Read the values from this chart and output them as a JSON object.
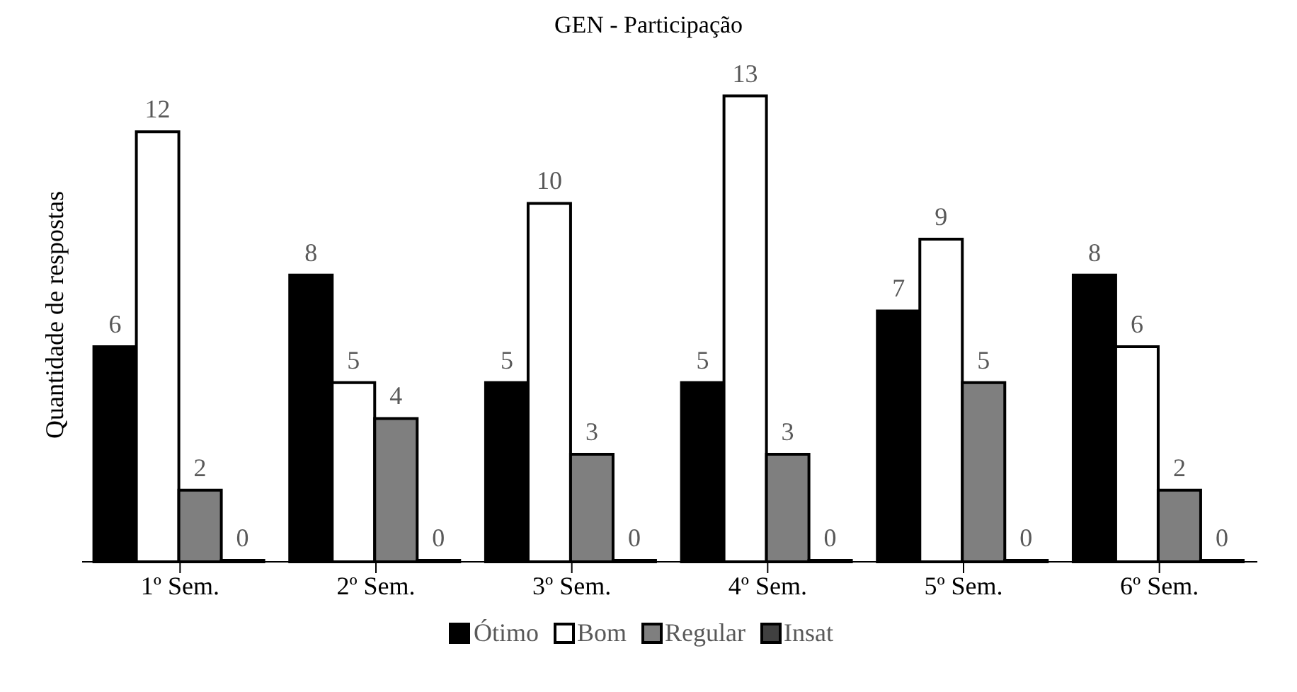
{
  "chart_data": {
    "type": "bar",
    "title": "GEN - Participação",
    "ylabel": "Quantidade de respostas",
    "categories": [
      "1º Sem.",
      "2º Sem.",
      "3º Sem.",
      "4º Sem.",
      "5º Sem.",
      "6º Sem."
    ],
    "series": [
      {
        "name": "Ótimo",
        "color": "#000000",
        "values": [
          6,
          8,
          5,
          5,
          7,
          8
        ]
      },
      {
        "name": "Bom",
        "color": "#ffffff",
        "values": [
          12,
          5,
          10,
          13,
          9,
          6
        ]
      },
      {
        "name": "Regular",
        "color": "#7f7f7f",
        "values": [
          2,
          4,
          3,
          3,
          5,
          2
        ]
      },
      {
        "name": "Insat",
        "color": "#404040",
        "values": [
          0,
          0,
          0,
          0,
          0,
          0
        ]
      }
    ],
    "data_labels": true,
    "legend": "bottom",
    "grid": false,
    "tick_labels": "x"
  }
}
